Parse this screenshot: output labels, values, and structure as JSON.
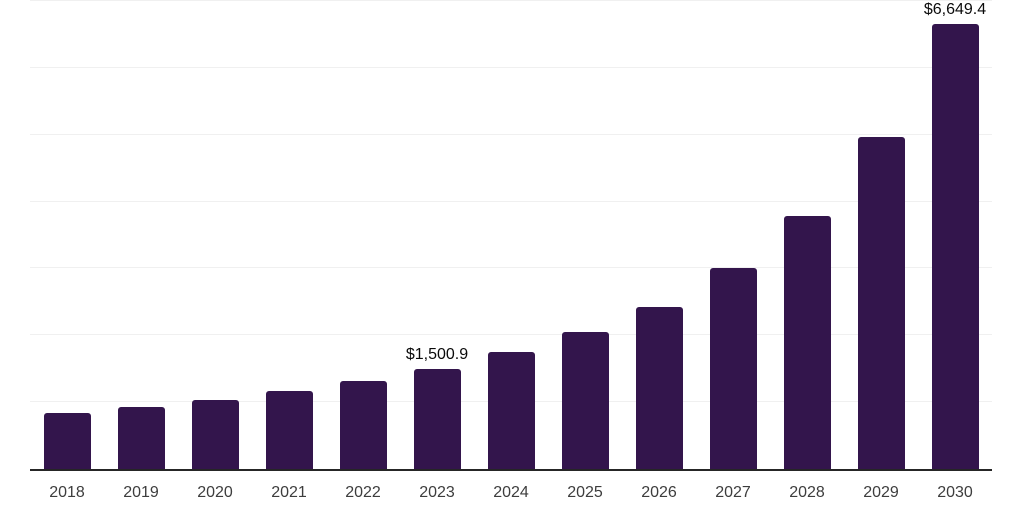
{
  "chart_data": {
    "type": "bar",
    "title": "",
    "xlabel": "",
    "ylabel": "",
    "categories": [
      "2018",
      "2019",
      "2020",
      "2021",
      "2022",
      "2023",
      "2024",
      "2025",
      "2026",
      "2027",
      "2028",
      "2029",
      "2030"
    ],
    "values": [
      845,
      925,
      1030,
      1170,
      1320,
      1500.9,
      1745,
      2045,
      2430,
      3000,
      3790,
      4960,
      6649.4
    ],
    "annotations": [
      {
        "category": "2023",
        "text": "$1,500.9"
      },
      {
        "category": "2030",
        "text": "$6,649.4"
      }
    ],
    "ylim": [
      0,
      7000
    ],
    "ytick_interval": 1000,
    "grid": "horizontal",
    "y_axis_labels_visible": false,
    "legend_position": "none",
    "colors": {
      "bar": "#33154C",
      "gridline": "#f0f0f0",
      "axis_line": "#262626",
      "tick_label": "#3d3d3d",
      "annotation": "#0a0a0a",
      "background": "#ffffff"
    }
  }
}
